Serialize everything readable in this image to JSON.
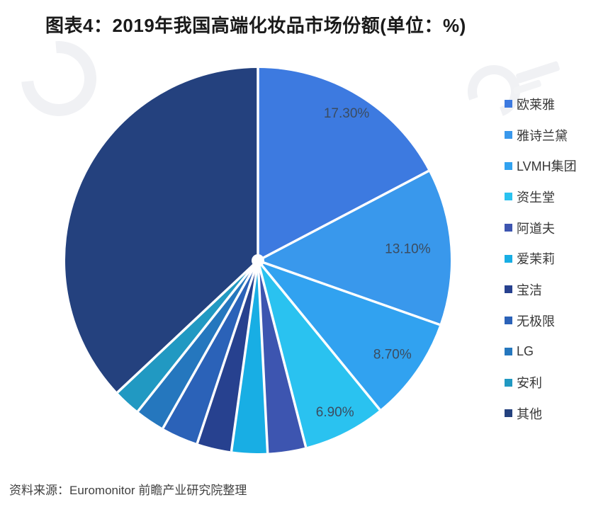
{
  "title": "图表4：2019年我国高端化妆品市场份额(单位：%)",
  "source": "资料来源：Euromonitor 前瞻产业研究院整理",
  "icons": {
    "watermark": "qianzhan-logo-watermark",
    "legend_swatch": "square-swatch-icon"
  },
  "chart_data": {
    "type": "pie",
    "title": "图表4：2019年我国高端化妆品市场份额(单位：%)",
    "unit": "%",
    "start_angle_deg": 0,
    "direction": "clockwise",
    "legend_position": "right",
    "label_color": "#3B4C60",
    "note": "values for slices without visible data labels are estimated from slice angles",
    "series": [
      {
        "name": "欧莱雅",
        "value": 17.3,
        "label": "17.30%",
        "color": "#3D7AE0"
      },
      {
        "name": "雅诗兰黛",
        "value": 13.1,
        "label": "13.10%",
        "color": "#3998EC"
      },
      {
        "name": "LVMH集团",
        "value": 8.7,
        "label": "8.70%",
        "color": "#31A2F0"
      },
      {
        "name": "资生堂",
        "value": 6.9,
        "label": "6.90%",
        "color": "#2AC2F0"
      },
      {
        "name": "阿道夫",
        "value": 3.2,
        "label": "",
        "color": "#3D55B0"
      },
      {
        "name": "爱茉莉",
        "value": 3.0,
        "label": "",
        "color": "#18AEE4"
      },
      {
        "name": "宝洁",
        "value": 2.9,
        "label": "",
        "color": "#27418F"
      },
      {
        "name": "无极限",
        "value": 3.1,
        "label": "",
        "color": "#2B62B8"
      },
      {
        "name": "LG",
        "value": 2.5,
        "label": "",
        "color": "#2577BE"
      },
      {
        "name": "安利",
        "value": 2.3,
        "label": "",
        "color": "#2199C2"
      },
      {
        "name": "其他",
        "value": 37.0,
        "label": "",
        "color": "#24417E"
      }
    ]
  }
}
